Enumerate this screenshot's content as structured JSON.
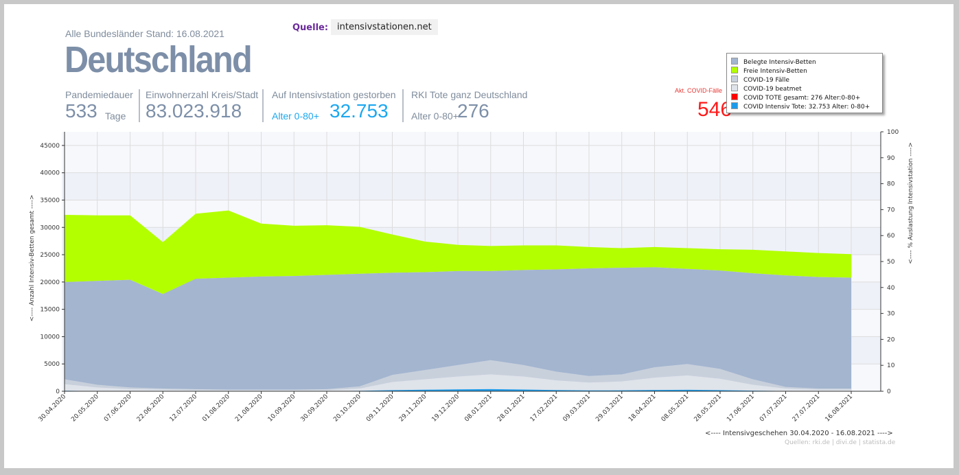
{
  "header": {
    "stand": "Alle Bundesländer Stand: 16.08.2021",
    "land": "Deutschland",
    "quelle_label": "Quelle:",
    "quelle_value": "intensivstationen.net"
  },
  "stats": {
    "pandemie_label": "Pandemiedauer",
    "pandemie_value": "533",
    "pandemie_unit": "Tage",
    "einwohner_label": "Einwohnerzahl Kreis/Stadt",
    "einwohner_value": "83.023.918",
    "gestorben_label": "Auf Intensivstation gestorben",
    "gestorben_age": "Alter 0-80+",
    "gestorben_value": "32.753",
    "rki_label": "RKI Tote ganz Deutschland",
    "rki_age": "Alter 0-80+",
    "rki_value": "276",
    "covid_label": "Akt. COVID-Fälle",
    "covid_value": "546"
  },
  "legend": [
    {
      "label": "Belegte Intensiv-Betten",
      "color": "#a3b5cf"
    },
    {
      "label": "Freie Intensiv-Betten",
      "color": "#b3ff00"
    },
    {
      "label": "COVID-19 Fälle",
      "color": "#c8d0dc"
    },
    {
      "label": "COVID-19 beatmet",
      "color": "#dfe3ea"
    },
    {
      "label": "COVID TOTE gesamt: 276 Alter:0-80+",
      "color": "#ff0000"
    },
    {
      "label": "COVID Intensiv Tote: 32.753 Alter: 0-80+",
      "color": "#1e9be8"
    }
  ],
  "footer": {
    "xtitle": "<---- Intensivgeschehen 30.04.2020 - 16.08.2021 ---->",
    "sources": "Quellen: rki.de | divi.de | statista.de"
  },
  "chart_data": {
    "type": "area",
    "ylabel": "<---- Anzahl Intensiv-Betten gesamt ---->",
    "y2label": "<---- % Auslastung Intensivstation ---->",
    "ylim": [
      0,
      47500
    ],
    "y2lim": [
      0,
      100
    ],
    "yticks": [
      0,
      5000,
      10000,
      15000,
      20000,
      25000,
      30000,
      35000,
      40000,
      45000
    ],
    "y2ticks": [
      0,
      10,
      20,
      30,
      40,
      50,
      60,
      70,
      80,
      90,
      100
    ],
    "grid": true,
    "legend_position": "top-right",
    "categories": [
      "30.04.2020",
      "20.05.2020",
      "07.06.2020",
      "22.06.2020",
      "12.07.2020",
      "01.08.2020",
      "21.08.2020",
      "10.09.2020",
      "30.09.2020",
      "20.10.2020",
      "09.11.2020",
      "29.11.2020",
      "19.12.2020",
      "08.01.2021",
      "28.01.2021",
      "17.02.2021",
      "09.03.2021",
      "29.03.2021",
      "18.04.2021",
      "08.05.2021",
      "28.05.2021",
      "17.06.2021",
      "07.07.2021",
      "27.07.2021",
      "16.08.2021"
    ],
    "series": [
      {
        "name": "Belegte Intensiv-Betten",
        "values": [
          20000,
          20200,
          20400,
          17800,
          20600,
          20800,
          21000,
          21100,
          21300,
          21500,
          21700,
          21800,
          22000,
          22000,
          22200,
          22300,
          22500,
          22600,
          22700,
          22400,
          22100,
          21600,
          21200,
          20900,
          20800
        ]
      },
      {
        "name": "Freie Intensiv-Betten",
        "values": [
          12300,
          12000,
          11800,
          9500,
          11900,
          12300,
          9700,
          9200,
          9100,
          8600,
          7000,
          5600,
          4800,
          4600,
          4500,
          4400,
          3900,
          3600,
          3700,
          3800,
          3900,
          4300,
          4400,
          4400,
          4300
        ]
      },
      {
        "name": "COVID-19 Fälle",
        "values": [
          2200,
          1200,
          700,
          500,
          400,
          300,
          300,
          300,
          400,
          900,
          3000,
          3900,
          4800,
          5700,
          4800,
          3600,
          2800,
          3100,
          4400,
          5000,
          4100,
          2200,
          800,
          500,
          500
        ]
      },
      {
        "name": "COVID-19 beatmet",
        "values": [
          1300,
          700,
          400,
          300,
          200,
          200,
          200,
          200,
          200,
          500,
          1700,
          2200,
          2700,
          3100,
          2700,
          2000,
          1600,
          1800,
          2500,
          2900,
          2300,
          1200,
          500,
          300,
          300
        ]
      },
      {
        "name": "COVID Intensiv Tote",
        "values": [
          90,
          40,
          20,
          15,
          10,
          8,
          8,
          10,
          20,
          80,
          200,
          280,
          350,
          390,
          320,
          220,
          150,
          170,
          230,
          260,
          210,
          110,
          40,
          20,
          20
        ]
      }
    ]
  }
}
